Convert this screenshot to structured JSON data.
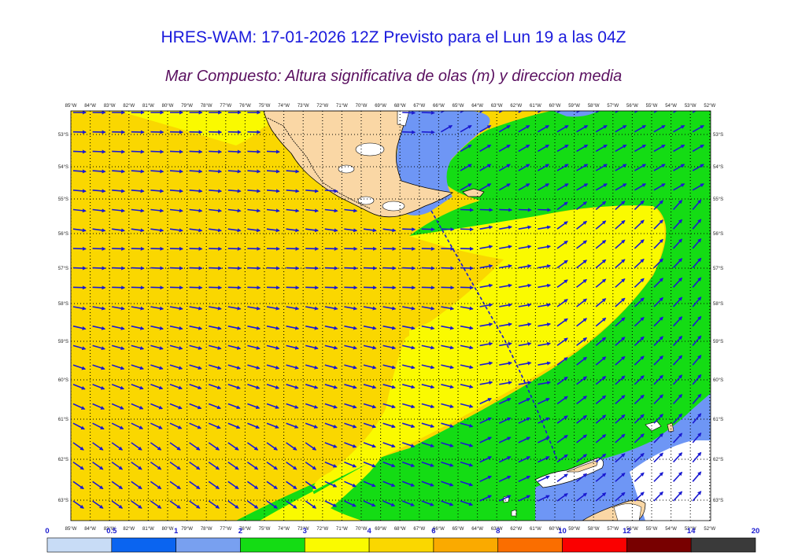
{
  "title": "HRES-WAM: 17-01-2026 12Z Previsto para el Lun 19 a las 04Z",
  "subtitle": "Mar Compuesto: Altura significativa de olas (m) y direccion media",
  "longitudes": [
    "85°W",
    "84°W",
    "83°W",
    "82°W",
    "81°W",
    "80°W",
    "79°W",
    "78°W",
    "77°W",
    "76°W",
    "75°W",
    "74°W",
    "73°W",
    "72°W",
    "71°W",
    "70°W",
    "69°W",
    "68°W",
    "67°W",
    "66°W",
    "65°W",
    "64°W",
    "63°W",
    "62°W",
    "61°W",
    "60°W",
    "59°W",
    "58°W",
    "57°W",
    "56°W",
    "55°W",
    "54°W",
    "53°W",
    "52°W"
  ],
  "latitudes": [
    "53°S",
    "54°S",
    "55°S",
    "56°S",
    "57°S",
    "58°S",
    "59°S",
    "60°S",
    "61°S",
    "62°S",
    "63°S"
  ],
  "colorbar": {
    "labels": [
      "0",
      "0.5",
      "1",
      "2",
      "3",
      "4",
      "6",
      "8",
      "10",
      "12",
      "14",
      "20"
    ],
    "colors": [
      "#c8dcf6",
      "#0a64f0",
      "#78a0f0",
      "#14dc14",
      "#fafa00",
      "#fad700",
      "#faaa00",
      "#fa6e00",
      "#fa0000",
      "#780000",
      "#3a3a3a"
    ]
  },
  "colors": {
    "sea_0_5_1": "#6e96f5",
    "sea_2_3": "#14dc14",
    "sea_3_4": "#fafa00",
    "sea_4_6": "#fad700",
    "land": "#fad7a5",
    "arrows": "#1a1ad0"
  }
}
